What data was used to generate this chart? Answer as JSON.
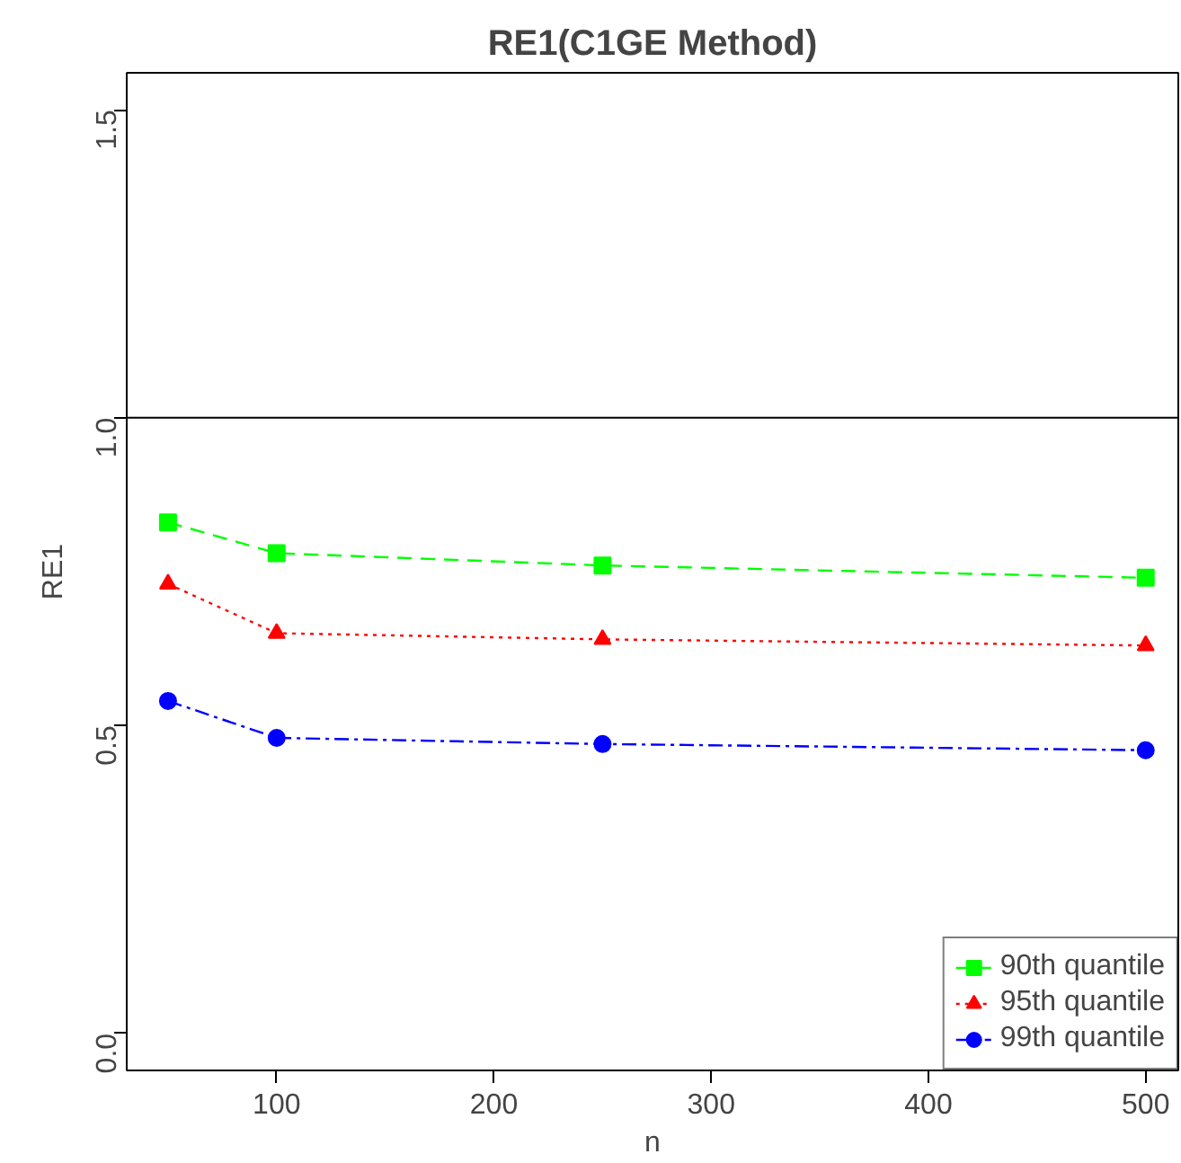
{
  "chart_data": {
    "type": "line",
    "title": "RE1(C1GE Method)",
    "xlabel": "n",
    "ylabel": "RE1",
    "x": [
      50,
      100,
      250,
      500
    ],
    "series": [
      {
        "name": "90th quantile",
        "color": "#00ff00",
        "values": [
          0.83,
          0.78,
          0.76,
          0.74
        ],
        "marker": "square",
        "line_style": "dashed"
      },
      {
        "name": "95th quantile",
        "color": "#ff0000",
        "values": [
          0.73,
          0.65,
          0.64,
          0.63
        ],
        "marker": "triangle",
        "line_style": "dotted"
      },
      {
        "name": "99th quantile",
        "color": "#0000ff",
        "values": [
          0.54,
          0.48,
          0.47,
          0.46
        ],
        "marker": "circle",
        "line_style": "dashdot"
      }
    ],
    "xlim": [
      31,
      515
    ],
    "ylim": [
      -0.06,
      1.56
    ],
    "xticks": [
      100,
      200,
      300,
      400,
      500
    ],
    "yticks": [
      {
        "value": 0,
        "label": "0.0"
      },
      0.5,
      {
        "value": 1,
        "label": "1.0"
      },
      1.5
    ],
    "ref_lines": [
      {
        "axis": "y",
        "value": 1.0,
        "color": "#000000",
        "line_style": "solid"
      }
    ],
    "grid": false,
    "legend": "bottom right"
  }
}
